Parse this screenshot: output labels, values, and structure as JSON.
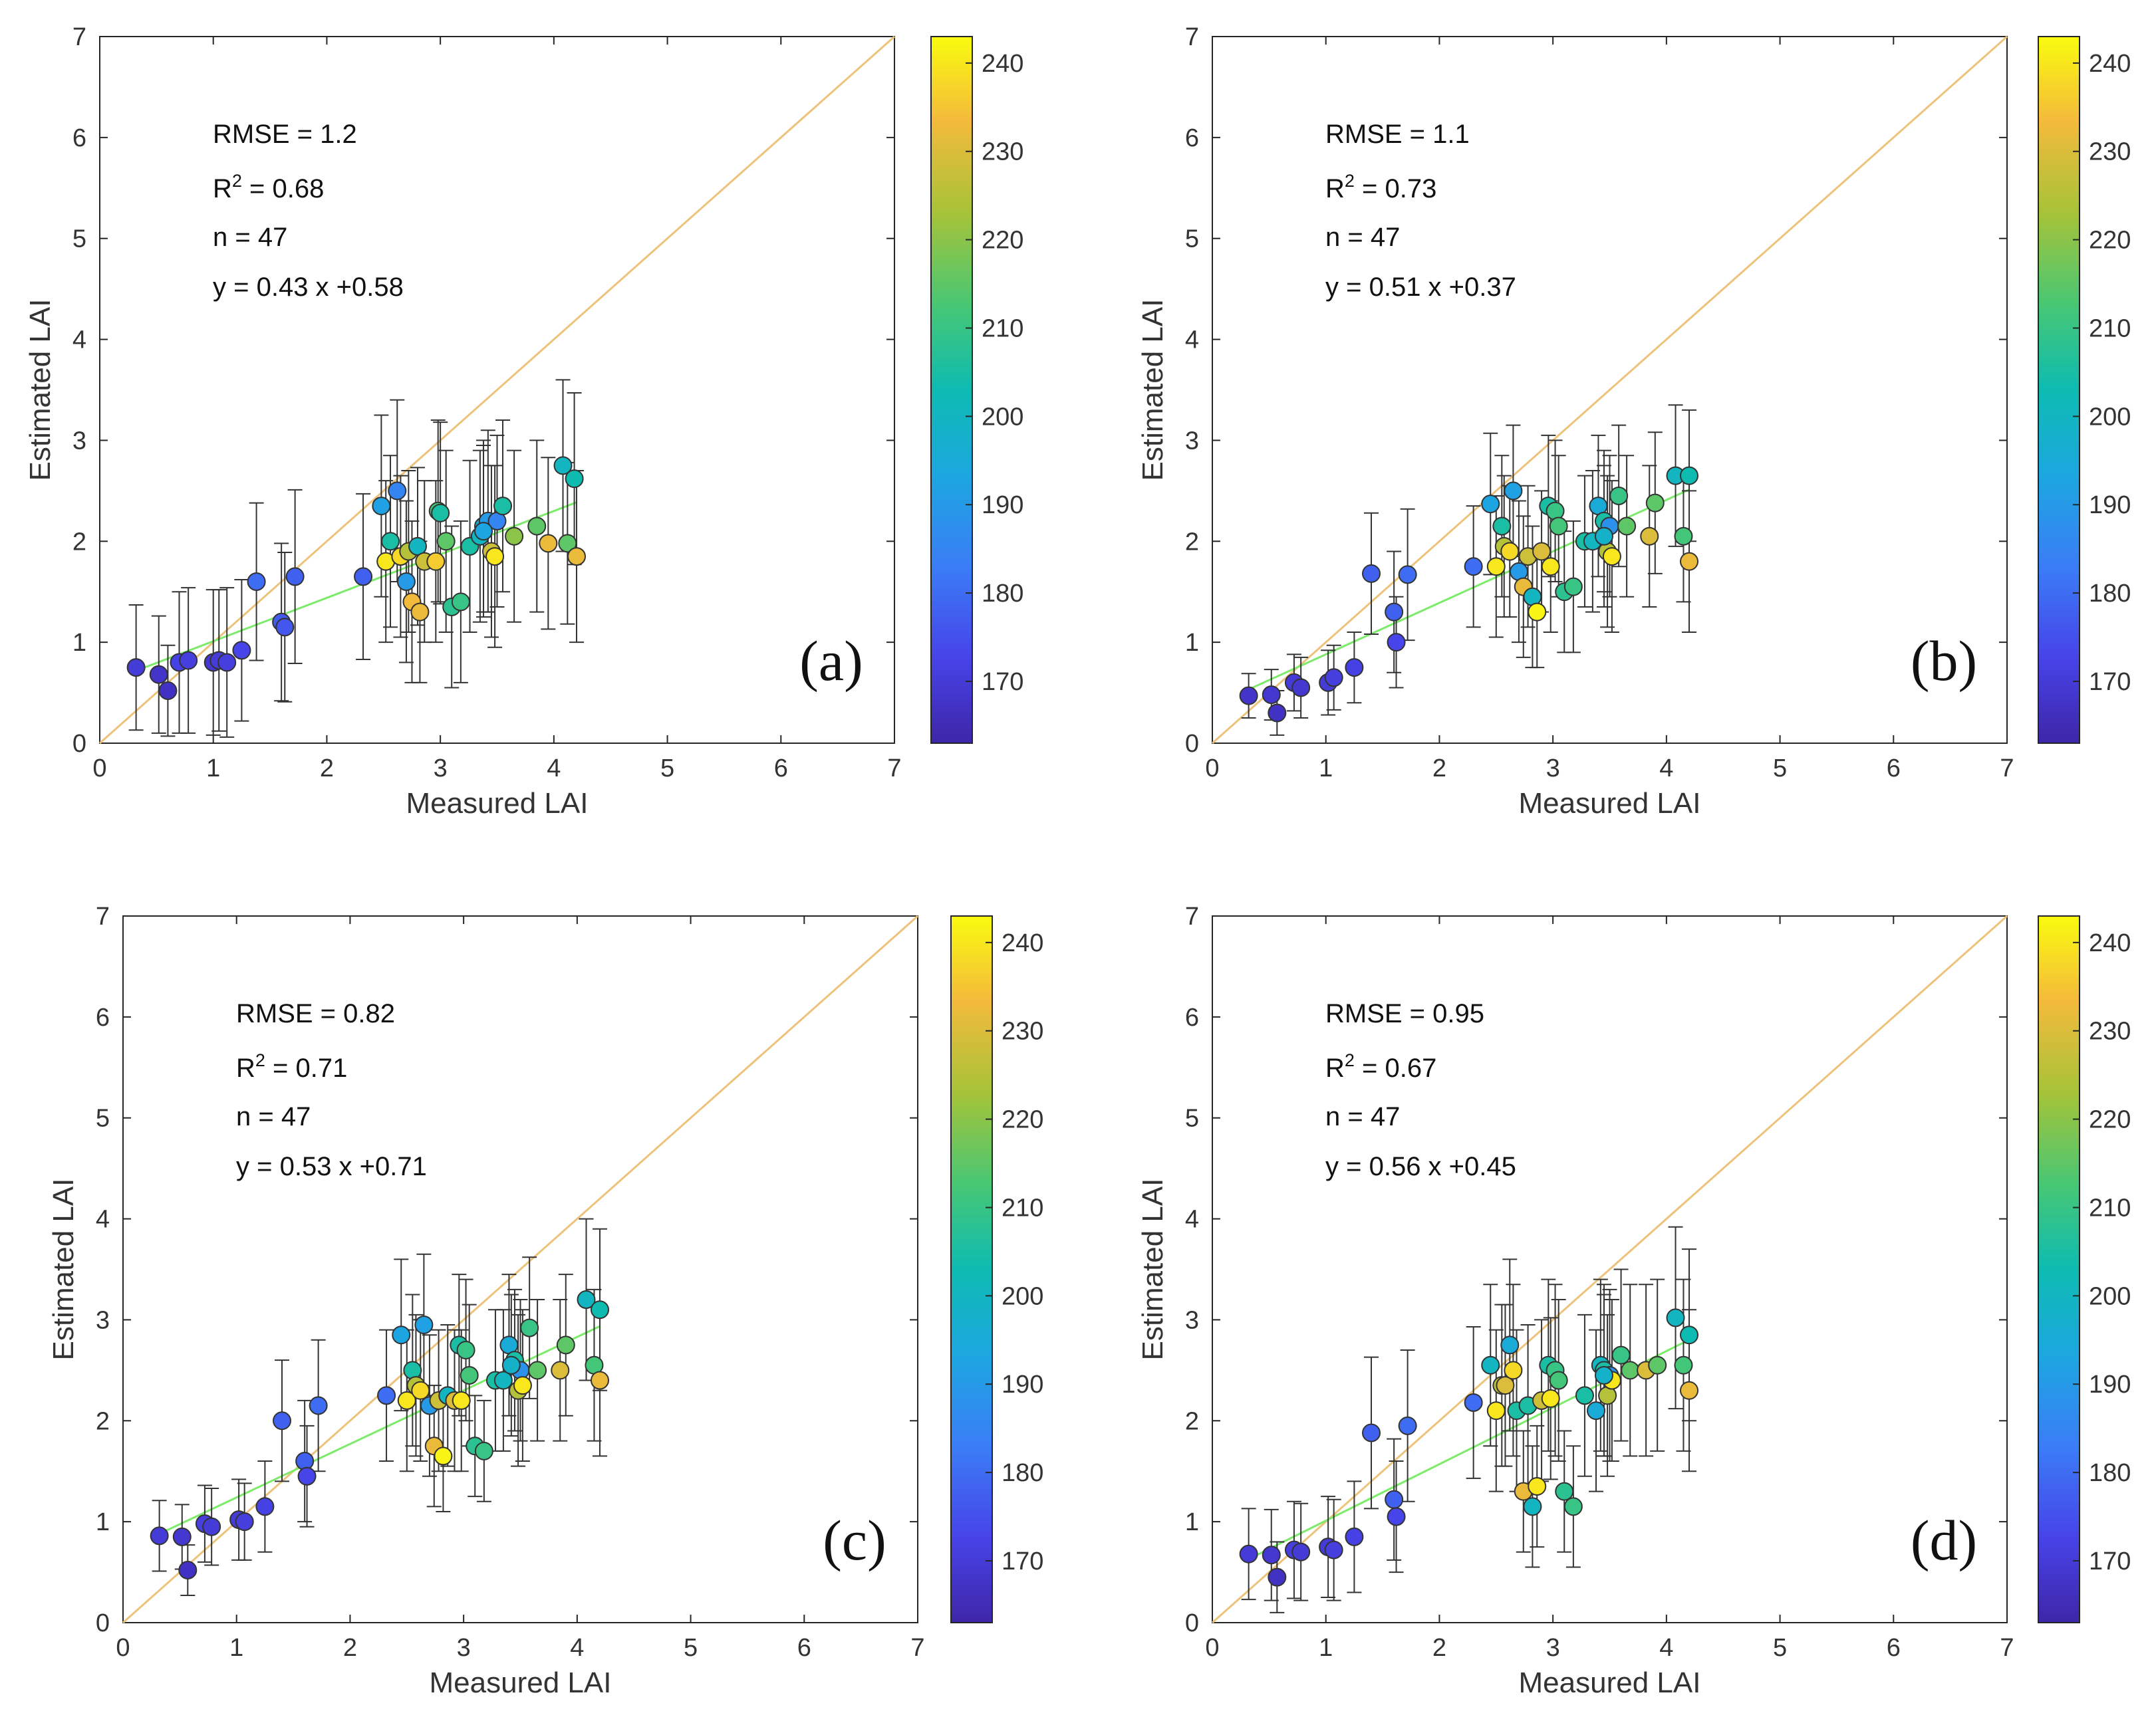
{
  "figure": {
    "x_label": "Measured LAI",
    "y_label": "Estimated LAI",
    "axis_ticks": [
      "0",
      "1",
      "2",
      "3",
      "4",
      "5",
      "6",
      "7"
    ],
    "colorbar": {
      "ticks": [
        "170",
        "180",
        "190",
        "200",
        "210",
        "220",
        "230",
        "240"
      ],
      "range": [
        163,
        243
      ]
    },
    "colors": {
      "one_to_one": "#EDC27A",
      "fit": "#7CEB6A",
      "errorbar": "#333333"
    }
  },
  "chart_data": [
    {
      "type": "scatter",
      "panel_label": "(a)",
      "stats": {
        "rmse": "RMSE = 1.2",
        "r2_prefix": "R",
        "r2_value": " = 0.68",
        "n": "n = 47",
        "equation": "y = 0.43 x +0.58"
      },
      "xlim": [
        0,
        7
      ],
      "ylim": [
        0,
        7
      ],
      "fit": {
        "slope": 0.43,
        "intercept": 0.58,
        "x_range": [
          0.3,
          4.2
        ]
      },
      "points": [
        [
          0.32,
          0.75,
          0.62,
          170
        ],
        [
          0.52,
          0.68,
          0.58,
          168
        ],
        [
          0.6,
          0.52,
          0.45,
          167
        ],
        [
          0.7,
          0.8,
          0.7,
          172
        ],
        [
          0.78,
          0.82,
          0.72,
          171
        ],
        [
          1.0,
          0.8,
          0.72,
          169
        ],
        [
          1.05,
          0.82,
          0.7,
          170
        ],
        [
          1.12,
          0.8,
          0.74,
          171
        ],
        [
          1.25,
          0.92,
          0.7,
          173
        ],
        [
          1.38,
          1.6,
          0.78,
          180
        ],
        [
          1.6,
          1.2,
          0.78,
          177
        ],
        [
          1.63,
          1.15,
          0.74,
          176
        ],
        [
          1.72,
          1.65,
          0.86,
          178
        ],
        [
          2.32,
          1.65,
          0.82,
          178
        ],
        [
          2.48,
          2.35,
          0.9,
          192
        ],
        [
          2.52,
          1.8,
          0.8,
          240
        ],
        [
          2.56,
          2.0,
          0.85,
          205
        ],
        [
          2.62,
          2.5,
          0.9,
          185
        ],
        [
          2.65,
          1.85,
          0.8,
          238
        ],
        [
          2.7,
          1.6,
          0.8,
          190
        ],
        [
          2.72,
          1.9,
          0.8,
          225
        ],
        [
          2.75,
          1.4,
          0.8,
          233
        ],
        [
          2.8,
          1.95,
          0.78,
          200
        ],
        [
          2.82,
          1.3,
          0.7,
          232
        ],
        [
          2.86,
          1.8,
          0.8,
          228
        ],
        [
          2.96,
          1.8,
          0.8,
          236
        ],
        [
          2.98,
          2.3,
          0.9,
          212
        ],
        [
          3.0,
          2.28,
          0.9,
          205
        ],
        [
          3.05,
          2.0,
          0.9,
          215
        ],
        [
          3.1,
          1.35,
          0.8,
          208
        ],
        [
          3.18,
          1.4,
          0.8,
          210
        ],
        [
          3.26,
          1.95,
          0.85,
          205
        ],
        [
          3.35,
          2.05,
          0.85,
          200
        ],
        [
          3.38,
          2.15,
          0.85,
          196
        ],
        [
          3.42,
          2.2,
          0.9,
          190
        ],
        [
          3.45,
          1.9,
          0.85,
          228
        ],
        [
          3.48,
          1.85,
          0.9,
          240
        ],
        [
          3.5,
          2.2,
          0.85,
          185
        ],
        [
          3.55,
          2.35,
          0.85,
          205
        ],
        [
          3.65,
          2.05,
          0.85,
          220
        ],
        [
          3.85,
          2.15,
          0.85,
          215
        ],
        [
          3.95,
          1.98,
          0.85,
          232
        ],
        [
          4.08,
          2.75,
          0.85,
          200
        ],
        [
          4.12,
          1.98,
          0.8,
          215
        ],
        [
          4.18,
          2.62,
          0.85,
          203
        ],
        [
          4.2,
          1.85,
          0.85,
          232
        ],
        [
          3.38,
          2.1,
          0.85,
          193
        ]
      ]
    },
    {
      "type": "scatter",
      "panel_label": "(b)",
      "stats": {
        "rmse": "RMSE = 1.1",
        "r2_prefix": "R",
        "r2_value": " = 0.73",
        "n": "n = 47",
        "equation": "y = 0.51 x +0.37"
      },
      "xlim": [
        0,
        7
      ],
      "ylim": [
        0,
        7
      ],
      "fit": {
        "slope": 0.51,
        "intercept": 0.37,
        "x_range": [
          0.3,
          4.2
        ]
      },
      "points": [
        [
          0.32,
          0.47,
          0.22,
          168
        ],
        [
          0.52,
          0.48,
          0.25,
          169
        ],
        [
          0.57,
          0.3,
          0.22,
          167
        ],
        [
          0.72,
          0.6,
          0.28,
          170
        ],
        [
          0.78,
          0.55,
          0.3,
          169
        ],
        [
          1.02,
          0.6,
          0.32,
          170
        ],
        [
          1.07,
          0.65,
          0.32,
          171
        ],
        [
          1.25,
          0.75,
          0.35,
          172
        ],
        [
          1.4,
          1.68,
          0.6,
          178
        ],
        [
          1.6,
          1.3,
          0.6,
          178
        ],
        [
          1.62,
          1.0,
          0.45,
          173
        ],
        [
          1.72,
          1.67,
          0.65,
          180
        ],
        [
          2.3,
          1.75,
          0.6,
          180
        ],
        [
          2.45,
          2.37,
          0.7,
          193
        ],
        [
          2.5,
          1.75,
          0.7,
          240
        ],
        [
          2.55,
          2.15,
          0.7,
          205
        ],
        [
          2.57,
          1.95,
          0.7,
          225
        ],
        [
          2.62,
          1.9,
          0.65,
          238
        ],
        [
          2.65,
          2.5,
          0.65,
          192
        ],
        [
          2.7,
          1.7,
          0.7,
          190
        ],
        [
          2.74,
          1.55,
          0.7,
          232
        ],
        [
          2.78,
          1.85,
          0.7,
          228
        ],
        [
          2.82,
          1.45,
          0.7,
          200
        ],
        [
          2.86,
          1.3,
          0.55,
          242
        ],
        [
          2.9,
          1.9,
          0.6,
          230
        ],
        [
          2.96,
          2.35,
          0.7,
          205
        ],
        [
          2.98,
          1.75,
          0.65,
          240
        ],
        [
          3.02,
          2.3,
          0.7,
          210
        ],
        [
          3.05,
          2.15,
          0.7,
          212
        ],
        [
          3.1,
          1.5,
          0.6,
          208
        ],
        [
          3.18,
          1.55,
          0.65,
          210
        ],
        [
          3.28,
          2.0,
          0.65,
          205
        ],
        [
          3.35,
          2.0,
          0.7,
          200
        ],
        [
          3.4,
          2.35,
          0.7,
          195
        ],
        [
          3.45,
          2.2,
          0.7,
          205
        ],
        [
          3.48,
          1.9,
          0.75,
          225
        ],
        [
          3.5,
          2.15,
          0.7,
          188
        ],
        [
          3.52,
          1.85,
          0.75,
          240
        ],
        [
          3.58,
          2.45,
          0.7,
          210
        ],
        [
          3.65,
          2.15,
          0.7,
          215
        ],
        [
          3.85,
          2.05,
          0.7,
          230
        ],
        [
          3.9,
          2.38,
          0.7,
          215
        ],
        [
          4.08,
          2.65,
          0.7,
          200
        ],
        [
          4.15,
          2.05,
          0.65,
          212
        ],
        [
          4.2,
          2.65,
          0.65,
          203
        ],
        [
          4.2,
          1.8,
          0.7,
          232
        ],
        [
          3.45,
          2.05,
          0.7,
          198
        ]
      ]
    },
    {
      "type": "scatter",
      "panel_label": "(c)",
      "stats": {
        "rmse": "RMSE = 0.82",
        "r2_prefix": "R",
        "r2_value": " = 0.71",
        "n": "n = 47",
        "equation": "y = 0.53 x +0.71"
      },
      "xlim": [
        0,
        7
      ],
      "ylim": [
        0,
        7
      ],
      "fit": {
        "slope": 0.53,
        "intercept": 0.71,
        "x_range": [
          0.3,
          4.2
        ]
      },
      "points": [
        [
          0.32,
          0.86,
          0.35,
          170
        ],
        [
          0.52,
          0.85,
          0.32,
          169
        ],
        [
          0.57,
          0.52,
          0.25,
          167
        ],
        [
          0.72,
          0.98,
          0.38,
          171
        ],
        [
          0.78,
          0.95,
          0.38,
          170
        ],
        [
          1.02,
          1.02,
          0.4,
          170
        ],
        [
          1.07,
          1.0,
          0.38,
          171
        ],
        [
          1.25,
          1.15,
          0.45,
          172
        ],
        [
          1.4,
          2.0,
          0.6,
          178
        ],
        [
          1.6,
          1.6,
          0.6,
          178
        ],
        [
          1.62,
          1.45,
          0.5,
          173
        ],
        [
          1.72,
          2.15,
          0.65,
          180
        ],
        [
          2.32,
          2.25,
          0.65,
          180
        ],
        [
          2.45,
          2.85,
          0.75,
          193
        ],
        [
          2.5,
          2.2,
          0.7,
          240
        ],
        [
          2.55,
          2.5,
          0.75,
          205
        ],
        [
          2.58,
          2.35,
          0.7,
          225
        ],
        [
          2.62,
          2.3,
          0.7,
          238
        ],
        [
          2.65,
          2.95,
          0.7,
          192
        ],
        [
          2.7,
          2.15,
          0.7,
          190
        ],
        [
          2.74,
          1.75,
          0.6,
          232
        ],
        [
          2.78,
          2.2,
          0.7,
          228
        ],
        [
          2.82,
          1.65,
          0.55,
          242
        ],
        [
          2.86,
          2.25,
          0.7,
          200
        ],
        [
          2.92,
          2.2,
          0.7,
          230
        ],
        [
          2.96,
          2.75,
          0.7,
          205
        ],
        [
          2.98,
          2.2,
          0.7,
          240
        ],
        [
          3.02,
          2.7,
          0.7,
          210
        ],
        [
          3.05,
          2.45,
          0.7,
          212
        ],
        [
          3.1,
          1.75,
          0.5,
          208
        ],
        [
          3.18,
          1.7,
          0.5,
          210
        ],
        [
          3.28,
          2.4,
          0.7,
          205
        ],
        [
          3.35,
          2.4,
          0.7,
          200
        ],
        [
          3.4,
          2.75,
          0.7,
          195
        ],
        [
          3.45,
          2.6,
          0.7,
          205
        ],
        [
          3.48,
          2.3,
          0.75,
          225
        ],
        [
          3.5,
          2.5,
          0.7,
          188
        ],
        [
          3.52,
          2.35,
          0.75,
          240
        ],
        [
          3.58,
          2.92,
          0.7,
          210
        ],
        [
          3.65,
          2.5,
          0.7,
          215
        ],
        [
          3.85,
          2.5,
          0.7,
          230
        ],
        [
          3.9,
          2.75,
          0.7,
          215
        ],
        [
          4.08,
          3.2,
          0.8,
          200
        ],
        [
          4.15,
          2.55,
          0.75,
          212
        ],
        [
          4.2,
          3.1,
          0.8,
          203
        ],
        [
          4.2,
          2.4,
          0.75,
          232
        ],
        [
          3.42,
          2.55,
          0.7,
          198
        ]
      ]
    },
    {
      "type": "scatter",
      "panel_label": "(d)",
      "stats": {
        "rmse": "RMSE = 0.95",
        "r2_prefix": "R",
        "r2_value": " = 0.67",
        "n": "n = 47",
        "equation": "y = 0.56 x +0.45"
      },
      "xlim": [
        0,
        7
      ],
      "ylim": [
        0,
        7
      ],
      "fit": {
        "slope": 0.56,
        "intercept": 0.45,
        "x_range": [
          0.3,
          4.2
        ]
      },
      "points": [
        [
          0.32,
          0.68,
          0.45,
          170
        ],
        [
          0.52,
          0.67,
          0.45,
          169
        ],
        [
          0.57,
          0.45,
          0.35,
          167
        ],
        [
          0.72,
          0.72,
          0.48,
          171
        ],
        [
          0.78,
          0.7,
          0.48,
          170
        ],
        [
          1.02,
          0.75,
          0.5,
          170
        ],
        [
          1.07,
          0.72,
          0.5,
          171
        ],
        [
          1.25,
          0.85,
          0.55,
          172
        ],
        [
          1.4,
          1.88,
          0.75,
          178
        ],
        [
          1.6,
          1.22,
          0.6,
          178
        ],
        [
          1.62,
          1.05,
          0.55,
          173
        ],
        [
          1.72,
          1.95,
          0.75,
          180
        ],
        [
          2.3,
          2.18,
          0.75,
          180
        ],
        [
          2.45,
          2.55,
          0.8,
          200
        ],
        [
          2.5,
          2.1,
          0.8,
          240
        ],
        [
          2.55,
          2.35,
          0.8,
          225
        ],
        [
          2.58,
          2.35,
          0.8,
          230
        ],
        [
          2.62,
          2.75,
          0.85,
          195
        ],
        [
          2.65,
          2.5,
          0.85,
          238
        ],
        [
          2.68,
          2.1,
          0.8,
          205
        ],
        [
          2.74,
          1.3,
          0.6,
          232
        ],
        [
          2.78,
          2.15,
          0.8,
          205
        ],
        [
          2.82,
          1.15,
          0.6,
          200
        ],
        [
          2.86,
          1.35,
          0.6,
          240
        ],
        [
          2.9,
          2.2,
          0.8,
          228
        ],
        [
          2.96,
          2.55,
          0.85,
          205
        ],
        [
          2.98,
          2.22,
          0.8,
          240
        ],
        [
          3.02,
          2.5,
          0.85,
          210
        ],
        [
          3.05,
          2.4,
          0.8,
          212
        ],
        [
          3.1,
          1.3,
          0.6,
          208
        ],
        [
          3.18,
          1.15,
          0.6,
          210
        ],
        [
          3.28,
          2.25,
          0.8,
          205
        ],
        [
          3.38,
          2.1,
          0.8,
          195
        ],
        [
          3.42,
          2.55,
          0.85,
          200
        ],
        [
          3.45,
          2.5,
          0.85,
          205
        ],
        [
          3.48,
          2.25,
          0.8,
          225
        ],
        [
          3.5,
          2.45,
          0.85,
          188
        ],
        [
          3.52,
          2.4,
          0.8,
          240
        ],
        [
          3.6,
          2.65,
          0.85,
          210
        ],
        [
          3.68,
          2.5,
          0.85,
          215
        ],
        [
          3.82,
          2.5,
          0.85,
          230
        ],
        [
          3.92,
          2.55,
          0.85,
          215
        ],
        [
          4.08,
          3.02,
          0.9,
          200
        ],
        [
          4.15,
          2.55,
          0.85,
          212
        ],
        [
          4.2,
          2.85,
          0.85,
          203
        ],
        [
          4.2,
          2.3,
          0.8,
          232
        ],
        [
          3.45,
          2.45,
          0.8,
          198
        ]
      ]
    }
  ]
}
